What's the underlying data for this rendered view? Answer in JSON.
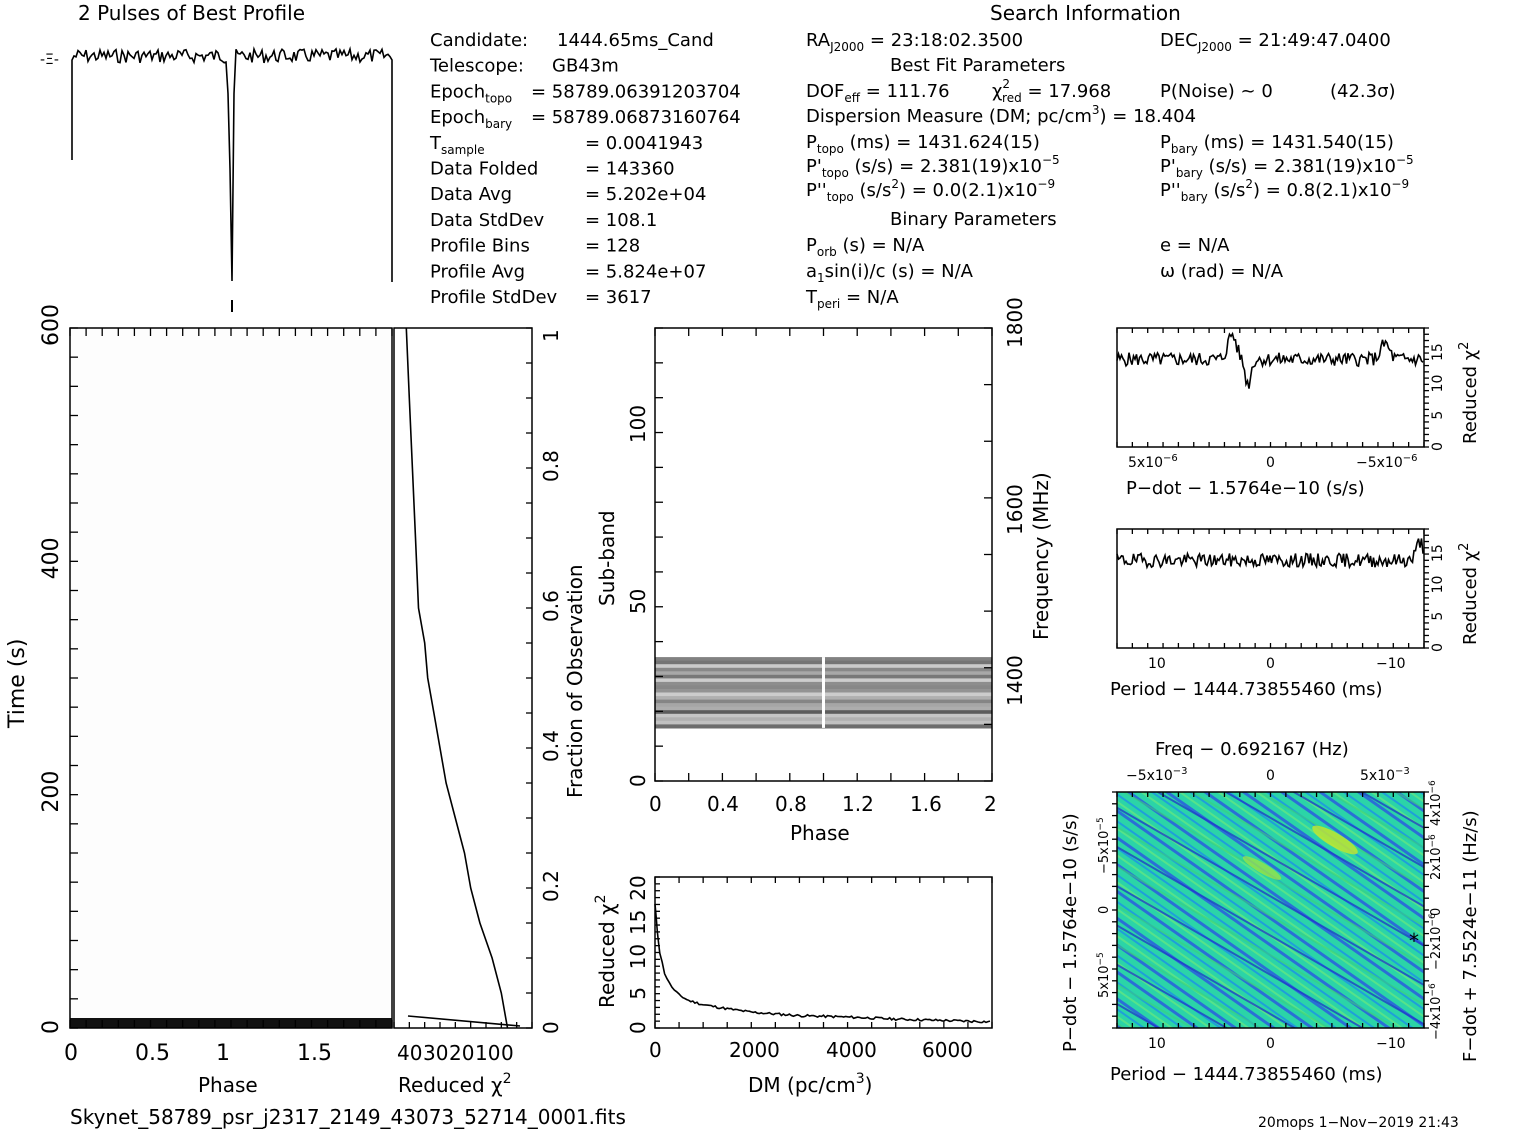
{
  "header": {
    "profile_title": "2 Pulses of Best Profile",
    "search_title": "Search Information"
  },
  "info_left": [
    {
      "label": "Candidate:",
      "sub": "",
      "value": "1444.65ms_Cand"
    },
    {
      "label": "Telescope:",
      "sub": "",
      "value": "GB43m"
    },
    {
      "label": "Epoch",
      "sub": "topo",
      "value": "= 58789.0639120370​4"
    },
    {
      "label": "Epoch",
      "sub": "bary",
      "value": "= 58789.06873160764"
    },
    {
      "label": "T",
      "sub": "sample",
      "value": "=   0.0041943"
    },
    {
      "label": "Data Folded",
      "sub": "",
      "value": "=   143360"
    },
    {
      "label": "Data Avg",
      "sub": "",
      "value": "=   5.202e+04"
    },
    {
      "label": "Data StdDev",
      "sub": "",
      "value": "=   108.1"
    },
    {
      "label": "Profile Bins",
      "sub": "",
      "value": "=   128"
    },
    {
      "label": "Profile Avg",
      "sub": "",
      "value": "=   5.824e+07"
    },
    {
      "label": "Profile StdDev",
      "sub": "",
      "value": "=   3617"
    }
  ],
  "search_info": {
    "ra": "RA",
    "ra_sub": "J2000",
    "ra_value": " = 23:18:02.3500",
    "dec": "DEC",
    "dec_sub": "J2000",
    "dec_value": " = 21:49:47.0400",
    "best_fit_title": "Best Fit Parameters",
    "dof": "DOF",
    "dof_sub": "eff",
    "dof_value": " = 111.76",
    "chi": "χ",
    "chi_sup": "2",
    "chi_sub": "red",
    "chi_value": " = 17.968",
    "pnoise": "P(Noise) ~ 0",
    "sigma": "(42.3σ)",
    "dm_line": "Dispersion Measure (DM; pc/cm",
    "dm_sup": "3",
    "dm_value": ") = 18.404",
    "ptopo": "P",
    "ptopo_sub": "topo",
    "ptopo_value": " (ms) =  1431.624(15)",
    "pbary": "P",
    "pbary_sub": "bary",
    "pbary_value": " (ms) =  1431.540(15)",
    "pdtopo": "P'",
    "pdtopo_sub": "topo",
    "pdtopo_value": " (s/s) =  2.381(19)x10",
    "pdtopo_exp": "−5",
    "pdbary": "P'",
    "pdbary_sub": "bary",
    "pdbary_value": " (s/s) =  2.381(19)x10",
    "pdbary_exp": "−5",
    "pddtopo": "P''",
    "pddtopo_sub": "topo",
    "pddtopo_value": " (s/s",
    "pddtopo_sup": "2",
    "pddtopo_value2": ") = 0.0(2.1)x10",
    "pddtopo_exp": "−9",
    "pddbary": "P''",
    "pddbary_sub": "bary",
    "pddbary_value": " (s/s",
    "pddbary_sup": "2",
    "pddbary_value2": ") =  0.8(2.1)x10",
    "pddbary_exp": "−9",
    "binary_title": "Binary Parameters",
    "porb": "P",
    "porb_sub": "orb",
    "porb_value": " (s) = N/A",
    "ecc": "e = N/A",
    "asini": "a",
    "asini_sub": "1",
    "asini_value": "sin(i)/c (s) = N/A",
    "omega": "ω (rad) = N/A",
    "tperi": "T",
    "tperi_sub": "peri",
    "tperi_value": " = N/A"
  },
  "footer": {
    "filename": "Skynet_58789_psr_j2317_2149_43073_52714_0001.fits",
    "stamp": "20mops   1−Nov−2019 21:43"
  },
  "colors": {
    "grey_band": "#8a8a8a",
    "heat_base": "#27d9a0",
    "heat_dark": "#1f3fd0",
    "heat_hot": "#c8e629"
  },
  "chart_data": [
    {
      "id": "profile",
      "type": "line",
      "title": "2 Pulses of Best Profile",
      "x": "phase 0–2",
      "note_values": {
        "dip_phase": [
          1.0
        ],
        "level": "flat ~ 0.85, dip at phase 1"
      }
    },
    {
      "id": "time_phase",
      "type": "heatmap",
      "xlabel": "Phase",
      "ylabel": "Time (s)",
      "xticks": [
        "0",
        "0.5",
        "1",
        "1.5"
      ],
      "xlim": [
        0,
        2
      ],
      "yticks": [
        "0",
        "200",
        "400",
        "600"
      ],
      "ylim": [
        0,
        600
      ]
    },
    {
      "id": "chi_time",
      "type": "line",
      "xlabel": "Reduced χ2",
      "xlabel_text": "Reduced χ",
      "xlabel_sup": "2",
      "xticks": [
        "40",
        "30",
        "20",
        "10",
        "0"
      ],
      "xlim": [
        45,
        0
      ],
      "right_label": "Fraction of Observation",
      "rticks": [
        "0",
        "0.2",
        "0.4",
        "0.6",
        "0.8",
        "1"
      ],
      "series": [
        {
          "x": [
            8,
            10,
            13,
            17,
            20,
            22,
            25,
            28,
            30,
            32,
            34,
            35,
            37,
            38,
            39,
            40,
            40.5,
            41
          ],
          "y": [
            0,
            0.05,
            0.1,
            0.15,
            0.2,
            0.25,
            0.3,
            0.35,
            0.4,
            0.45,
            0.5,
            0.55,
            0.6,
            0.7,
            0.8,
            0.9,
            0.95,
            1.0
          ]
        }
      ]
    },
    {
      "id": "subband_phase",
      "type": "heatmap",
      "xlabel": "Phase",
      "ylabel": "Sub-band",
      "right_label": "Frequency",
      "right_unit": "(MHz)",
      "xticks": [
        "0",
        "0.4",
        "0.8",
        "1.2",
        "1.6",
        "2"
      ],
      "xlim": [
        0,
        2
      ],
      "yticks": [
        "0",
        "50",
        "100"
      ],
      "ylim": [
        0,
        128
      ],
      "rticks": [
        "1400",
        "1600",
        "1800"
      ],
      "band_range": [
        15,
        35
      ]
    },
    {
      "id": "dm_chi",
      "type": "line",
      "xlabel": "DM (pc/cm",
      "xlabel_sup": "3",
      "xlabel_end": ")",
      "ylabel": "Reduced χ",
      "ylabel_sup": "2",
      "xticks": [
        "0",
        "2000",
        "4000",
        "6000"
      ],
      "xlim": [
        0,
        7000
      ],
      "yticks": [
        "0",
        "5",
        "10",
        "15",
        "20"
      ],
      "ylim": [
        0,
        22
      ],
      "series": [
        {
          "x": [
            0,
            50,
            100,
            200,
            300,
            400,
            500,
            700,
            1000,
            1500,
            2000,
            3000,
            4000,
            5000,
            6000,
            7000
          ],
          "y": [
            18,
            14,
            11,
            8,
            6.5,
            5.5,
            4.8,
            4.0,
            3.4,
            2.8,
            2.3,
            1.8,
            1.6,
            1.3,
            1.1,
            0.9
          ]
        }
      ]
    },
    {
      "id": "pdot_chi",
      "type": "line",
      "xlabel": "P−dot − 1.5764e−10 (s/s)",
      "ylabel": "Reduced χ",
      "ylabel_sup": "2",
      "xticks": [
        "5x10",
        "0",
        "−5x10"
      ],
      "xtick_exp": "−6",
      "yticks": [
        "0",
        "5",
        "10",
        "15"
      ],
      "ylim": [
        0,
        19
      ],
      "level": 14
    },
    {
      "id": "period_chi",
      "type": "line",
      "xlabel": "Period − 1444.73855460 (ms)",
      "ylabel": "Reduced χ",
      "ylabel_sup": "2",
      "xticks": [
        "10",
        "0",
        "−10"
      ],
      "yticks": [
        "0",
        "5",
        "10",
        "15"
      ],
      "ylim": [
        0,
        19
      ],
      "level": 14
    },
    {
      "id": "p_pdot",
      "type": "heatmap",
      "title": "Freq − 0.692167 (Hz)",
      "xlabel": "Period − 1444.73855460 (ms)",
      "ylabel": "P−dot − 1.5764e−10 (s/s)",
      "right_label": "F−dot + 7.5524e−11 (Hz/s)",
      "xticks": [
        "10",
        "0",
        "−10"
      ],
      "topticks": [
        "−5x10",
        "0",
        "5x10"
      ],
      "topexp": "−3",
      "yticks": [
        "−5x10",
        "0",
        "5x10"
      ],
      "yexp": "−5",
      "rticks": [
        "4x10",
        "2x10",
        "0",
        "−2x10",
        "−4x10"
      ],
      "rexp": "−6"
    }
  ]
}
